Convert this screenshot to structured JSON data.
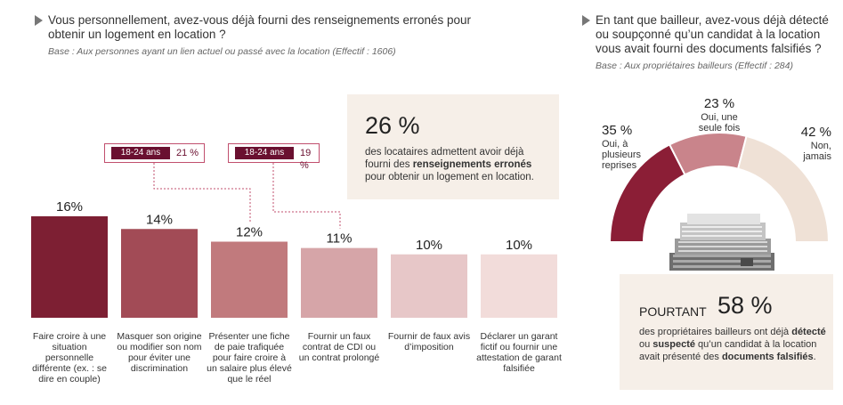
{
  "left": {
    "question": "Vous personnellement, avez-vous déjà fourni des renseignements erronés pour obtenir un logement en location ?",
    "base": "Base : Aux personnes ayant un lien actuel ou passé avec la location (Effectif : 1606)",
    "highlight_pct": "26 %",
    "highlight_pre": "des locataires admettent avoir déjà fourni des ",
    "highlight_bold": "renseignements erronés",
    "highlight_post": " pour obtenir un logement en location.",
    "callouts": [
      {
        "tag": "18-24 ans",
        "pct": "21 %"
      },
      {
        "tag": "18-24 ans",
        "pct": "19 %"
      }
    ]
  },
  "chart_data": [
    {
      "type": "bar",
      "categories": [
        "Faire croire à une situation personnelle différente (ex. : se dire en couple)",
        "Masquer son origine ou modifier son nom pour éviter une discrimination",
        "Présenter une fiche de paie trafiquée pour faire croire à un salaire plus élevé que le réel",
        "Fournir un faux contrat de CDI ou un contrat prolongé",
        "Fournir de faux avis d’imposition",
        "Déclarer un garant fictif ou fournir une attestation de garant falsifiée"
      ],
      "values": [
        16,
        14,
        12,
        11,
        10,
        10
      ],
      "value_labels": [
        "16%",
        "14%",
        "12%",
        "11%",
        "10%",
        "10%"
      ],
      "colors": [
        "#7d1f33",
        "#a24b56",
        "#c17a7d",
        "#d6a5a8",
        "#e7c7c8",
        "#f2dcda"
      ],
      "ylim": [
        0,
        16
      ]
    },
    {
      "type": "pie",
      "subtype": "half-donut",
      "categories": [
        "Oui, à plusieurs reprises",
        "Oui, une seule fois",
        "Non, jamais"
      ],
      "values": [
        35,
        23,
        42
      ],
      "value_labels": [
        "35 %",
        "23 %",
        "42 %"
      ],
      "colors": [
        "#8b1e36",
        "#c9848b",
        "#efe1d6"
      ]
    }
  ],
  "right": {
    "question": "En tant que bailleur, avez-vous déjà détecté ou soupçonné qu’un candidat à la location vous avait fourni des documents falsifiés ?",
    "base": "Base : Aux propriétaires bailleurs (Effectif : 284)",
    "gauge_labels": [
      {
        "value": "35 %",
        "text": [
          "Oui, à",
          "plusieurs",
          "reprises"
        ]
      },
      {
        "value": "23 %",
        "text": [
          "Oui, une",
          "seule fois"
        ]
      },
      {
        "value": "42 %",
        "text": [
          "Non,",
          "jamais"
        ]
      }
    ],
    "pourtant_word": "POURTANT",
    "pourtant_pct": "58 %",
    "pourtant_t1": "des propriétaires bailleurs ont déjà ",
    "pourtant_b1": "détecté",
    "pourtant_t2": " ou ",
    "pourtant_b2": "suspecté",
    "pourtant_t3": " qu’un candidat à la location avait présenté des ",
    "pourtant_b3": "documents falsifiés",
    "pourtant_t4": "."
  }
}
